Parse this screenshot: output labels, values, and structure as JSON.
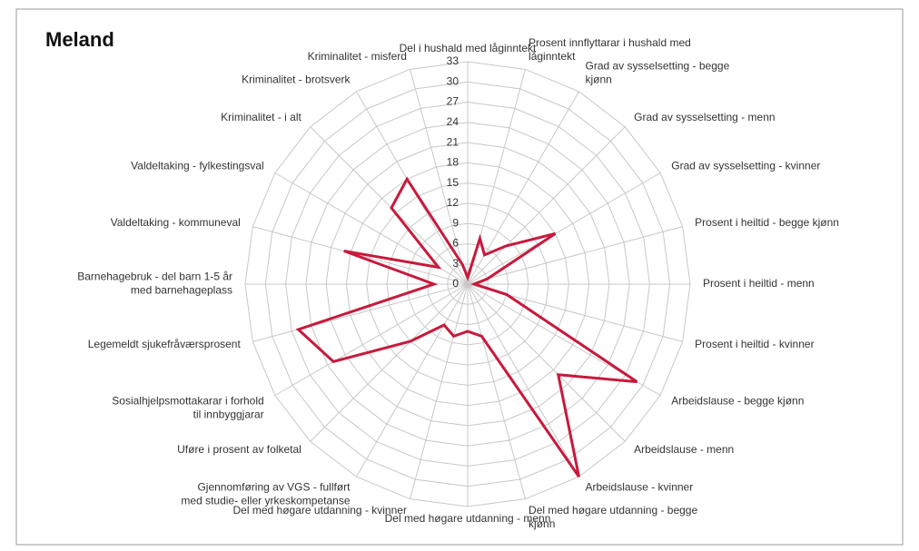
{
  "chart_data": {
    "type": "radar",
    "title": "Meland",
    "categories": [
      "Del i hushald med låginntekt",
      "Prosent innflyttarar i hushald med låginntekt",
      "Grad av sysselsetting - begge kjønn",
      "Grad av sysselsetting - menn",
      "Grad av sysselsetting - kvinner",
      "Prosent i heiltid - begge kjønn",
      "Prosent i heiltid - menn",
      "Prosent i heiltid - kvinner",
      "Arbeidslause - begge kjønn",
      "Arbeidslause - menn",
      "Arbeidslause - kvinner",
      "Del med høgare utdanning - begge kjønn",
      "Del med høgare utdanning - menn",
      "Del med høgare utdanning - kvinner",
      "Gjennomføring av VGS - fullført med studie- eller yrkeskompetanse",
      "Uføre i prosent av folketal",
      "Sosialhjelpsmottakarar i forhold til innbyggjarar",
      "Legemeldt sjukefråværsprosent",
      "Barnehagebruk - del barn 1-5 år med barnehageplass",
      "Valdeltaking - kommuneval",
      "Valdeltaking - fylkestingsval",
      "Kriminalitet - i alt",
      "Kriminalitet - brotsverk",
      "Kriminalitet - misferd"
    ],
    "values": [
      1,
      7,
      5,
      8,
      15,
      3,
      1,
      6,
      29,
      19,
      33,
      8,
      7,
      8,
      7,
      12,
      23,
      26,
      5,
      19,
      5,
      16,
      18,
      3
    ],
    "color": "#c8193c",
    "ylim": [
      0,
      33
    ],
    "yticks": [
      0,
      3,
      6,
      9,
      12,
      15,
      18,
      21,
      24,
      27,
      30,
      33
    ],
    "grid": true
  }
}
